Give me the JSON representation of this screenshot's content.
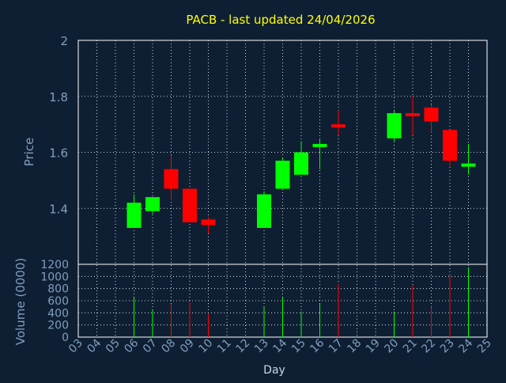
{
  "colors": {
    "background": "#0f1f33",
    "title": "#ffff00",
    "axis_text": "#7f9fbf",
    "frame": "#ffffff",
    "grid": "#ffffff",
    "up": "#00ff00",
    "down": "#ff0000"
  },
  "chart_data": [
    {
      "type": "candlestick",
      "title": "PACB - last updated 24/04/2026",
      "ylabel": "Price",
      "ylim": [
        1.2,
        2.0
      ],
      "yticks": [
        "1.4",
        "1.6",
        "1.8",
        "2"
      ],
      "ytick_values": [
        1.4,
        1.6,
        1.8,
        2.0
      ],
      "grid": true,
      "candles": [
        {
          "day": "06",
          "open": 1.33,
          "high": 1.45,
          "low": 1.33,
          "close": 1.42
        },
        {
          "day": "07",
          "open": 1.39,
          "high": 1.44,
          "low": 1.38,
          "close": 1.44
        },
        {
          "day": "08",
          "open": 1.54,
          "high": 1.59,
          "low": 1.43,
          "close": 1.47
        },
        {
          "day": "09",
          "open": 1.47,
          "high": 1.47,
          "low": 1.35,
          "close": 1.35
        },
        {
          "day": "10",
          "open": 1.36,
          "high": 1.37,
          "low": 1.31,
          "close": 1.34
        },
        {
          "day": "13",
          "open": 1.33,
          "high": 1.46,
          "low": 1.33,
          "close": 1.45
        },
        {
          "day": "14",
          "open": 1.47,
          "high": 1.58,
          "low": 1.47,
          "close": 1.57
        },
        {
          "day": "15",
          "open": 1.52,
          "high": 1.64,
          "low": 1.52,
          "close": 1.6
        },
        {
          "day": "16",
          "open": 1.62,
          "high": 1.65,
          "low": 1.54,
          "close": 1.63
        },
        {
          "day": "17",
          "open": 1.7,
          "high": 1.75,
          "low": 1.66,
          "close": 1.69
        },
        {
          "day": "20",
          "open": 1.65,
          "high": 1.75,
          "low": 1.64,
          "close": 1.74
        },
        {
          "day": "21",
          "open": 1.74,
          "high": 1.8,
          "low": 1.66,
          "close": 1.73
        },
        {
          "day": "22",
          "open": 1.76,
          "high": 1.77,
          "low": 1.67,
          "close": 1.71
        },
        {
          "day": "23",
          "open": 1.68,
          "high": 1.68,
          "low": 1.55,
          "close": 1.57
        },
        {
          "day": "24",
          "open": 1.55,
          "high": 1.63,
          "low": 1.52,
          "close": 1.56
        }
      ]
    },
    {
      "type": "bar",
      "ylabel": "Volume (0000)",
      "xlabel": "Day",
      "ylim": [
        0,
        1200
      ],
      "yticks": [
        "0",
        "200",
        "400",
        "600",
        "800",
        "1000",
        "1200"
      ],
      "ytick_values": [
        0,
        200,
        400,
        600,
        800,
        1000,
        1200
      ],
      "categories": [
        "03",
        "04",
        "05",
        "06",
        "07",
        "08",
        "09",
        "10",
        "11",
        "12",
        "13",
        "14",
        "15",
        "16",
        "17",
        "18",
        "19",
        "20",
        "21",
        "22",
        "23",
        "24",
        "25"
      ],
      "bars": [
        {
          "day": "06",
          "value": 650,
          "dir": "up"
        },
        {
          "day": "07",
          "value": 450,
          "dir": "up"
        },
        {
          "day": "08",
          "value": 550,
          "dir": "down"
        },
        {
          "day": "09",
          "value": 580,
          "dir": "down"
        },
        {
          "day": "10",
          "value": 380,
          "dir": "down"
        },
        {
          "day": "13",
          "value": 500,
          "dir": "up"
        },
        {
          "day": "14",
          "value": 650,
          "dir": "up"
        },
        {
          "day": "15",
          "value": 420,
          "dir": "up"
        },
        {
          "day": "16",
          "value": 550,
          "dir": "up"
        },
        {
          "day": "17",
          "value": 880,
          "dir": "down"
        },
        {
          "day": "20",
          "value": 420,
          "dir": "up"
        },
        {
          "day": "21",
          "value": 850,
          "dir": "down"
        },
        {
          "day": "22",
          "value": 500,
          "dir": "down"
        },
        {
          "day": "23",
          "value": 1000,
          "dir": "down"
        },
        {
          "day": "24",
          "value": 1150,
          "dir": "up"
        }
      ]
    }
  ]
}
